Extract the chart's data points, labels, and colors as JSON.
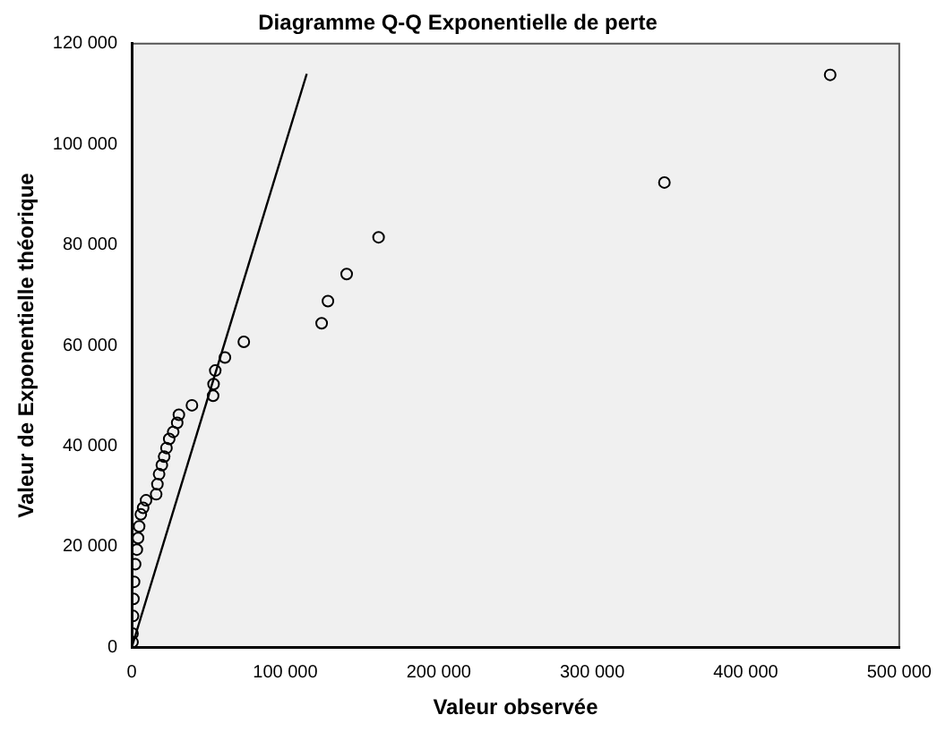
{
  "chart_data": {
    "type": "scatter",
    "title": "Diagramme Q-Q Exponentielle de perte",
    "xlabel": "Valeur observée",
    "ylabel": "Valeur de Exponentielle théorique",
    "xlim": [
      0,
      500000
    ],
    "ylim": [
      0,
      120000
    ],
    "xticks": [
      0,
      {
        "value": 100000,
        "label": "100 000"
      },
      {
        "value": 200000,
        "label": "200 000"
      },
      {
        "value": 300000,
        "label": "300 000"
      },
      {
        "value": 400000,
        "label": "400 000"
      },
      {
        "value": 500000,
        "label": "500 000"
      }
    ],
    "yticks": [
      0,
      {
        "value": 20000,
        "label": "20 000"
      },
      {
        "value": 40000,
        "label": "40 000"
      },
      {
        "value": 60000,
        "label": "60 000"
      },
      {
        "value": 80000,
        "label": "80 000"
      },
      {
        "value": 100000,
        "label": "100 000"
      },
      {
        "value": 120000,
        "label": "120 000"
      }
    ],
    "grid": false,
    "legend": false,
    "series": [
      {
        "marker": "circle",
        "color": "#000000",
        "x": [
          500,
          500,
          800,
          1100,
          1500,
          2200,
          3300,
          4100,
          4800,
          5900,
          7400,
          9300,
          15900,
          16700,
          17800,
          19600,
          21100,
          22600,
          24400,
          27000,
          29600,
          30700,
          39200,
          53000,
          53300,
          54400,
          60700,
          73000,
          123700,
          127800,
          140000,
          160800,
          347000,
          455000
        ],
        "values": [
          1000,
          2700,
          6200,
          9600,
          13000,
          16500,
          19400,
          21700,
          24000,
          26400,
          27700,
          29200,
          30400,
          32400,
          34400,
          36200,
          37900,
          39600,
          41400,
          42800,
          44600,
          46200,
          48100,
          50000,
          52300,
          55000,
          57600,
          60700,
          64400,
          68800,
          74200,
          81500,
          92400,
          113800
        ]
      },
      {
        "type": "line",
        "marker": "none",
        "color": "#000000",
        "x": [
          0,
          114000
        ],
        "values": [
          0,
          114000
        ]
      }
    ]
  }
}
